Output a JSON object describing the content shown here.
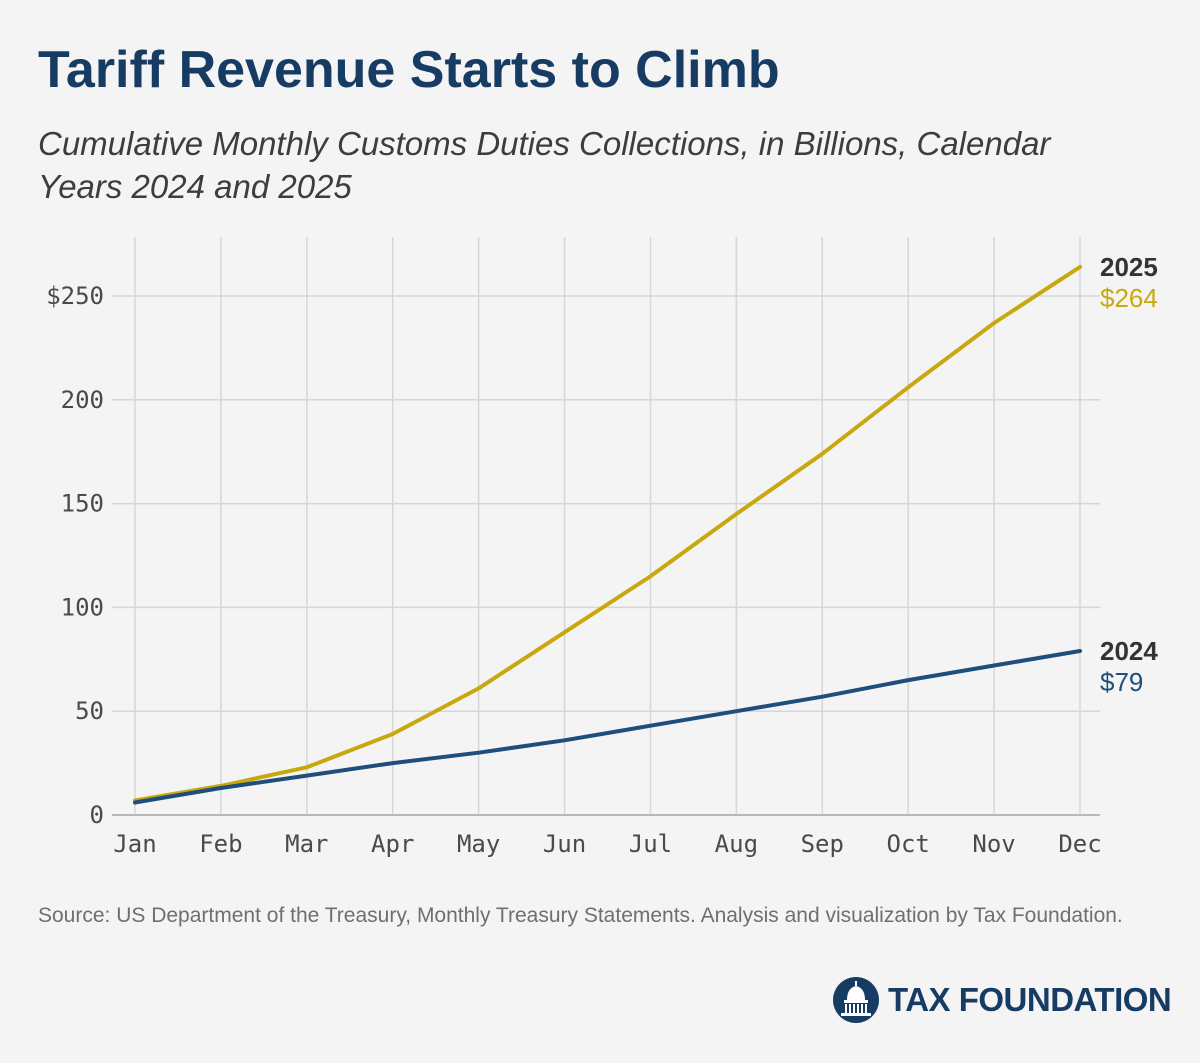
{
  "header": {
    "title": "Tariff Revenue Starts to Climb",
    "subtitle": "Cumulative Monthly Customs Duties Collections, in Billions, Calendar Years 2024 and 2025"
  },
  "chart_data": {
    "type": "line",
    "title": "Tariff Revenue Starts to Climb",
    "subtitle": "Cumulative Monthly Customs Duties Collections, in Billions, Calendar Years 2024 and 2025",
    "xlabel": "",
    "ylabel": "",
    "categories": [
      "Jan",
      "Feb",
      "Mar",
      "Apr",
      "May",
      "Jun",
      "Jul",
      "Aug",
      "Sep",
      "Oct",
      "Nov",
      "Dec"
    ],
    "ylim": [
      0,
      280
    ],
    "yticks": [
      0,
      50,
      100,
      150,
      200,
      250
    ],
    "ytick_labels": [
      "0",
      "50",
      "100",
      "150",
      "200",
      "$250"
    ],
    "grid": true,
    "legend": "direct labels at line ends (right)",
    "series": [
      {
        "name": "2025",
        "end_label": "$264",
        "color": "#c9a80f",
        "values": [
          7,
          14,
          23,
          39,
          61,
          88,
          115,
          145,
          174,
          206,
          237,
          264
        ]
      },
      {
        "name": "2024",
        "end_label": "$79",
        "color": "#1f4e7d",
        "values": [
          6,
          13,
          19,
          25,
          30,
          36,
          43,
          50,
          57,
          65,
          72,
          79
        ]
      }
    ]
  },
  "footer": {
    "source": "Source: US Department of the Treasury, Monthly Treasury Statements. Analysis and visualization by Tax Foundation.",
    "logo_text": "TAX FOUNDATION"
  },
  "colors": {
    "title": "#163c63",
    "background": "#f4f4f4",
    "gridline": "#d6d6d6",
    "axis": "#b8b8b8"
  }
}
